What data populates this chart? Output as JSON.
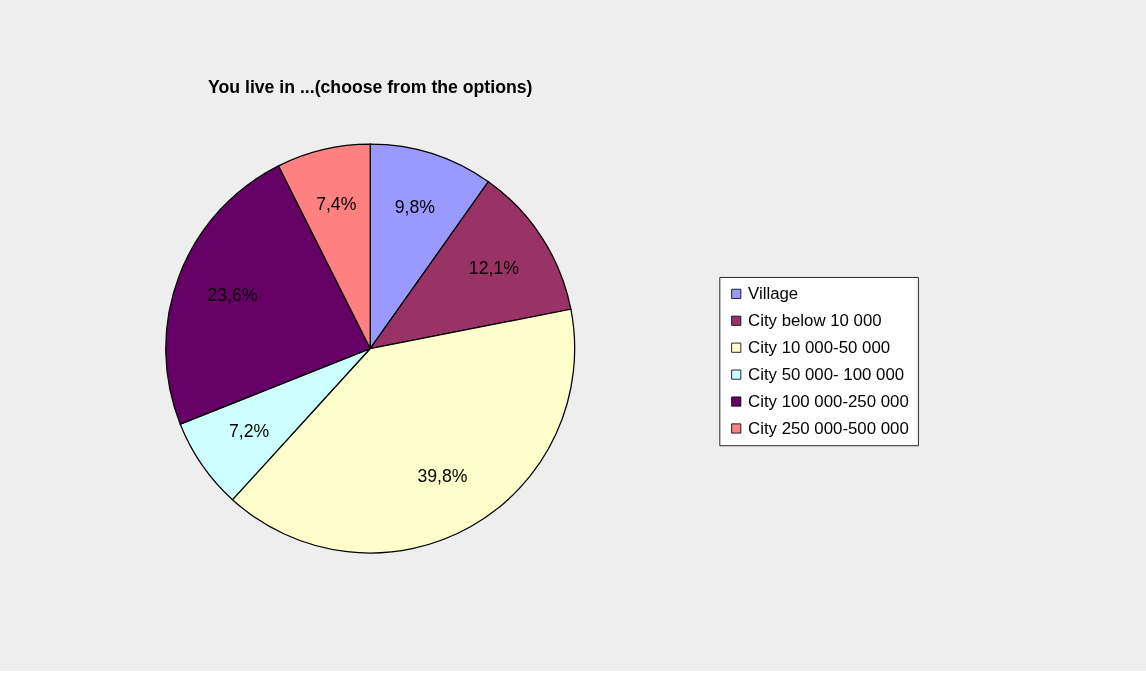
{
  "chart_data": {
    "type": "pie",
    "title": "You live in ...(choose from the options)",
    "categories": [
      "Village",
      "City below 10 000",
      "City 10 000-50 000",
      "City 50 000- 100 000",
      "City 100 000-250 000",
      "City 250 000-500 000"
    ],
    "values": [
      9.8,
      12.1,
      39.8,
      7.2,
      23.6,
      7.4
    ],
    "value_labels": [
      "9,8%",
      "12,1%",
      "39,8%",
      "7,2%",
      "23,6%",
      "7,4%"
    ],
    "colors": [
      "#9999ff",
      "#993366",
      "#ffffcc",
      "#ccffff",
      "#660066",
      "#ff8080"
    ],
    "legend": "right"
  }
}
